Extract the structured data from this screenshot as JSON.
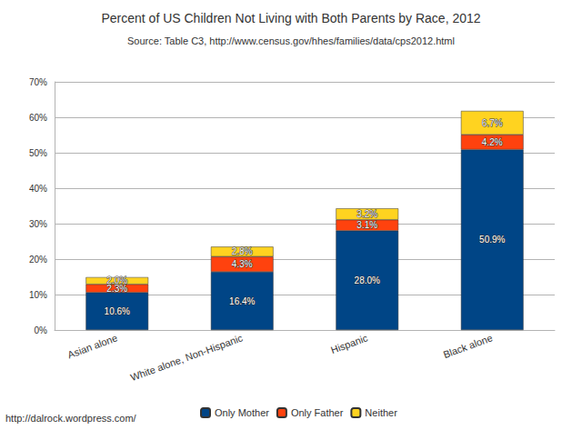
{
  "chart_data": {
    "type": "bar",
    "title": "Percent of US Children Not Living with Both Parents by Race, 2012",
    "subtitle": "Source: Table C3, http://www.census.gov/hhes/families/data/cps2012.html",
    "annotations": [
      "http://dalrock.wordpress.com/"
    ],
    "categories": [
      "Asian alone",
      "White alone, Non-Hispanic",
      "Hispanic",
      "Black alone"
    ],
    "series": [
      {
        "name": "Only Mother",
        "color": "#004586",
        "values": [
          10.6,
          16.4,
          28.0,
          50.9
        ],
        "value_labels": [
          "10.6%",
          "16.4%",
          "28.0%",
          "50.9%"
        ]
      },
      {
        "name": "Only Father",
        "color": "#ff420e",
        "values": [
          2.3,
          4.3,
          3.1,
          4.2
        ],
        "value_labels": [
          "2.3%",
          "4.3%",
          "3.1%",
          "4.2%"
        ]
      },
      {
        "name": "Neither",
        "color": "#ffd320",
        "values": [
          2.0,
          2.8,
          3.2,
          6.7
        ],
        "value_labels": [
          "2.0%",
          "2.8%",
          "3.2%",
          "6.7%"
        ]
      }
    ],
    "ylim": [
      0,
      70
    ],
    "yticks": [
      {
        "value": 0,
        "label": "0%"
      },
      {
        "value": 10,
        "label": "10%"
      },
      {
        "value": 20,
        "label": "20%"
      },
      {
        "value": 30,
        "label": "30%"
      },
      {
        "value": 40,
        "label": "40%"
      },
      {
        "value": 50,
        "label": "50%"
      },
      {
        "value": 60,
        "label": "60%"
      },
      {
        "value": 70,
        "label": "70%"
      }
    ],
    "stacked": true,
    "data_labels": true,
    "grid": true,
    "legend": "bottom"
  }
}
